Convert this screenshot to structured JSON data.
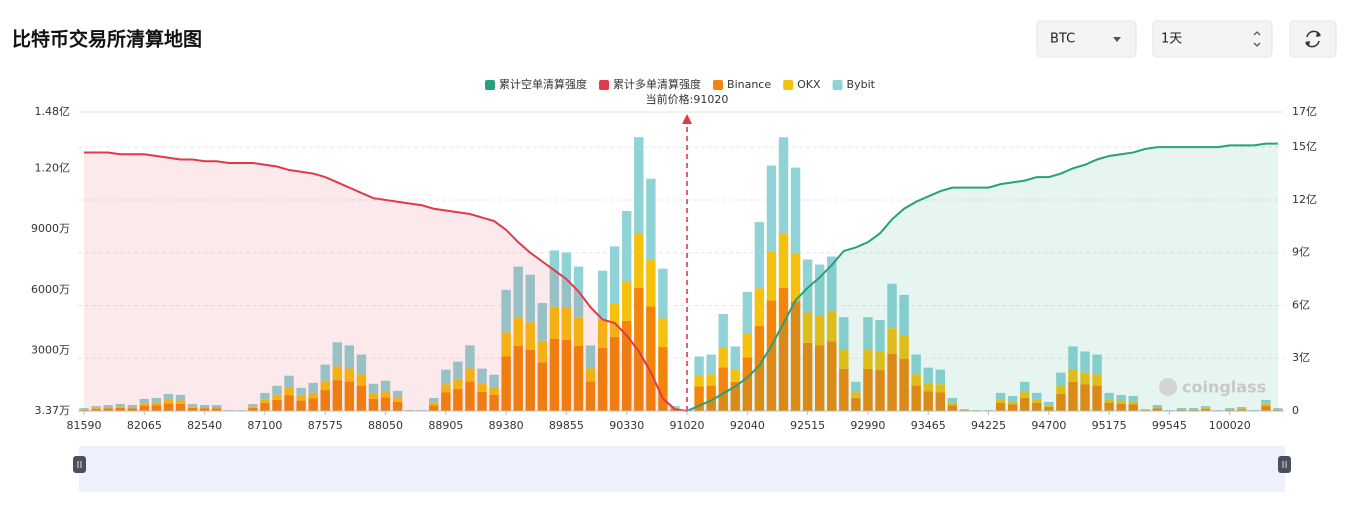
{
  "header": {
    "title": "比特币交易所清算地图",
    "symbol": "BTC",
    "period": "1天"
  },
  "chart_data": {
    "type": "bar",
    "stacked": true,
    "annotation": "当前价格:91020",
    "watermark": "coinglass",
    "categories": [
      "81590",
      null,
      null,
      null,
      null,
      "82065",
      null,
      null,
      null,
      null,
      "82540",
      null,
      null,
      null,
      null,
      "87100",
      null,
      null,
      null,
      null,
      "87575",
      null,
      null,
      null,
      null,
      "88050",
      null,
      null,
      null,
      null,
      "88905",
      null,
      null,
      null,
      null,
      "89380",
      null,
      null,
      null,
      null,
      "89855",
      null,
      null,
      null,
      null,
      "90330",
      null,
      null,
      null,
      null,
      "91020",
      null,
      null,
      null,
      null,
      "92040",
      null,
      null,
      null,
      null,
      "92515",
      null,
      null,
      null,
      null,
      "92990",
      null,
      null,
      null,
      null,
      "93465",
      null,
      null,
      null,
      null,
      "94225",
      null,
      null,
      null,
      null,
      "94700",
      null,
      null,
      null,
      null,
      "95175",
      null,
      null,
      null,
      null,
      "99545",
      null,
      null,
      null,
      null,
      "100020",
      null,
      null,
      null,
      null
    ],
    "series": [
      {
        "name": "累计空单清算强度",
        "type": "line",
        "axis": "y2",
        "color": "#26a17b",
        "values": [
          null,
          null,
          null,
          null,
          null,
          null,
          null,
          null,
          null,
          null,
          null,
          null,
          null,
          null,
          null,
          null,
          null,
          null,
          null,
          null,
          null,
          null,
          null,
          null,
          null,
          null,
          null,
          null,
          null,
          null,
          null,
          null,
          null,
          null,
          null,
          null,
          null,
          null,
          null,
          null,
          null,
          null,
          null,
          null,
          null,
          null,
          null,
          null,
          null,
          null,
          0,
          0.3,
          0.6,
          1.0,
          1.4,
          1.9,
          2.6,
          3.7,
          5.0,
          6.3,
          7.0,
          7.6,
          8.3,
          9.1,
          9.3,
          9.6,
          10.1,
          10.9,
          11.5,
          11.9,
          12.2,
          12.5,
          12.7,
          12.7,
          12.7,
          12.7,
          12.9,
          13.0,
          13.1,
          13.3,
          13.3,
          13.5,
          13.8,
          14.0,
          14.3,
          14.5,
          14.6,
          14.7,
          14.9,
          15.0,
          15.0,
          15.0,
          15.0,
          15.0,
          15.0,
          15.1,
          15.1,
          15.1,
          15.2,
          15.2
        ]
      },
      {
        "name": "累计多单清算强度",
        "type": "line",
        "axis": "y2",
        "color": "#e0394a",
        "values": [
          14.7,
          14.7,
          14.7,
          14.6,
          14.6,
          14.6,
          14.5,
          14.4,
          14.3,
          14.3,
          14.2,
          14.2,
          14.1,
          14.1,
          14.1,
          14.0,
          13.9,
          13.7,
          13.6,
          13.5,
          13.3,
          13.0,
          12.7,
          12.4,
          12.1,
          12.0,
          11.9,
          11.8,
          11.7,
          11.5,
          11.4,
          11.3,
          11.2,
          11.0,
          10.8,
          10.3,
          9.6,
          9.0,
          8.5,
          8.0,
          7.5,
          6.8,
          5.9,
          5.2,
          5.0,
          4.3,
          3.4,
          2.2,
          0.7,
          0.1,
          0,
          null,
          null,
          null,
          null,
          null,
          null,
          null,
          null,
          null,
          null,
          null,
          null,
          null,
          null,
          null,
          null,
          null,
          null,
          null,
          null,
          null,
          null,
          null,
          null,
          null,
          null,
          null,
          null,
          null,
          null,
          null,
          null,
          null,
          null,
          null,
          null,
          null,
          null,
          null,
          null,
          null,
          null,
          null,
          null,
          null,
          null,
          null,
          null,
          null
        ]
      },
      {
        "name": "Binance",
        "color": "#f2860b",
        "values": [
          70,
          110,
          140,
          160,
          140,
          270,
          290,
          380,
          360,
          160,
          140,
          140,
          20,
          20,
          160,
          400,
          560,
          790,
          520,
          630,
          1040,
          1530,
          1460,
          1260,
          610,
          680,
          450,
          20,
          20,
          290,
          920,
          1100,
          1460,
          950,
          810,
          2700,
          3220,
          3040,
          2410,
          3580,
          3530,
          3220,
          1460,
          3130,
          3670,
          4460,
          6100,
          5180,
          3170,
          110,
          20,
          1220,
          1260,
          2160,
          1440,
          2660,
          4210,
          5470,
          6100,
          5420,
          3380,
          3260,
          3440,
          2090,
          650,
          2090,
          2030,
          2840,
          2590,
          1260,
          970,
          920,
          290,
          50,
          20,
          20,
          400,
          340,
          650,
          400,
          200,
          860,
          1440,
          1330,
          1260,
          400,
          360,
          340,
          50,
          140,
          20,
          70,
          70,
          110,
          20,
          70,
          90,
          20,
          250,
          70
        ]
      },
      {
        "name": "OKX",
        "color": "#f5c10f",
        "values": [
          30,
          50,
          60,
          70,
          60,
          120,
          130,
          170,
          160,
          70,
          60,
          60,
          10,
          10,
          70,
          180,
          250,
          350,
          230,
          280,
          460,
          680,
          650,
          560,
          270,
          300,
          200,
          10,
          10,
          130,
          410,
          490,
          650,
          420,
          360,
          1200,
          1430,
          1350,
          1070,
          1590,
          1570,
          1430,
          650,
          1390,
          1630,
          1980,
          2710,
          2300,
          1410,
          50,
          10,
          540,
          560,
          960,
          640,
          1180,
          1870,
          2430,
          2710,
          2410,
          1500,
          1450,
          1530,
          930,
          290,
          930,
          900,
          1260,
          1150,
          560,
          430,
          410,
          130,
          20,
          10,
          10,
          180,
          150,
          290,
          180,
          90,
          380,
          640,
          590,
          560,
          180,
          160,
          150,
          20,
          60,
          10,
          30,
          30,
          50,
          10,
          30,
          40,
          10,
          110,
          30
        ]
      },
      {
        "name": "Bybit",
        "color": "#8fd3d6",
        "values": [
          50,
          90,
          100,
          120,
          100,
          210,
          230,
          300,
          280,
          120,
          100,
          100,
          20,
          20,
          120,
          320,
          440,
          610,
          400,
          490,
          800,
          1190,
          1140,
          980,
          470,
          520,
          350,
          20,
          20,
          230,
          720,
          860,
          1140,
          730,
          630,
          2100,
          2500,
          2360,
          1870,
          2780,
          2750,
          2500,
          1140,
          2430,
          2850,
          3460,
          4740,
          4020,
          2470,
          90,
          20,
          940,
          980,
          1680,
          1120,
          2060,
          3270,
          4250,
          4740,
          4220,
          2620,
          2540,
          2680,
          1630,
          510,
          1630,
          1570,
          2200,
          2010,
          980,
          750,
          720,
          230,
          30,
          20,
          20,
          320,
          260,
          510,
          320,
          160,
          660,
          1120,
          1030,
          980,
          320,
          280,
          260,
          30,
          100,
          20,
          50,
          50,
          90,
          20,
          50,
          70,
          20,
          190,
          50
        ]
      }
    ],
    "ylim": [
      3.37,
      14800
    ],
    "yticks": [
      {
        "value": 3.37,
        "label": "3.37万"
      },
      {
        "value": 3000,
        "label": "3000万"
      },
      {
        "value": 6000,
        "label": "6000万"
      },
      {
        "value": 9000,
        "label": "9000万"
      },
      {
        "value": 12000,
        "label": "1.20亿"
      },
      {
        "value": 14800,
        "label": "1.48亿"
      }
    ],
    "y2lim": [
      0,
      17
    ],
    "y2ticks": [
      0,
      {
        "value": 3,
        "label": "3亿"
      },
      {
        "value": 6,
        "label": "6亿"
      },
      {
        "value": 9,
        "label": "9亿"
      },
      {
        "value": 12,
        "label": "12亿"
      },
      {
        "value": 15,
        "label": "15亿"
      },
      {
        "value": 17,
        "label": "17亿"
      }
    ],
    "grid": true
  }
}
